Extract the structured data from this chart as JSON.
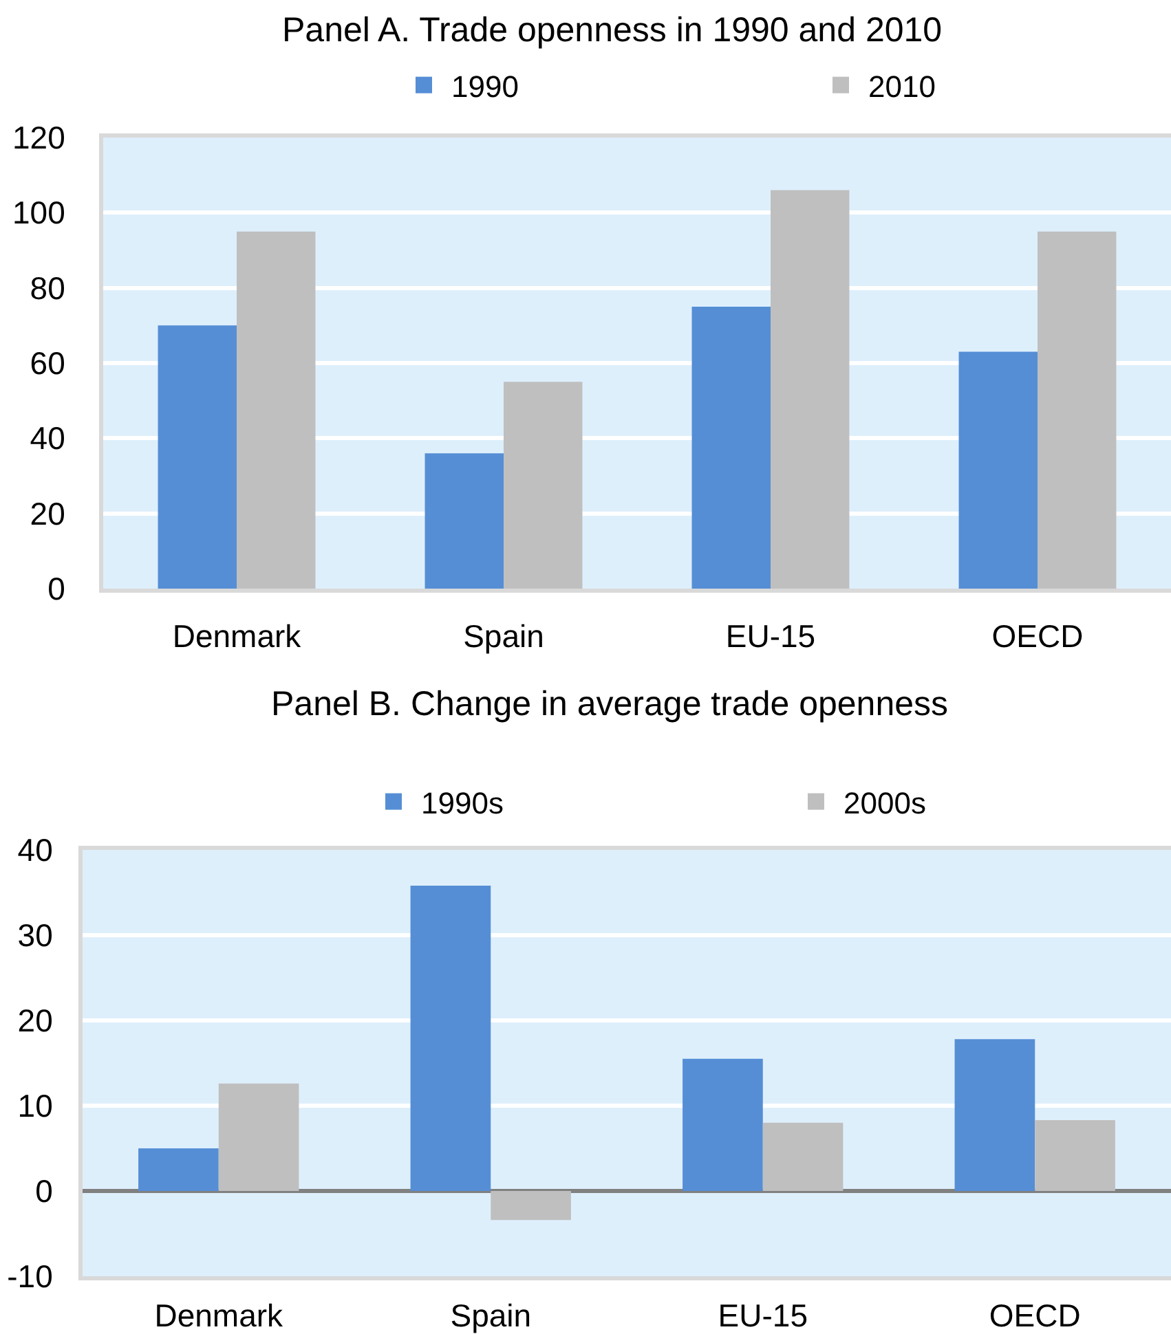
{
  "chart_data": [
    {
      "type": "bar",
      "title": "Panel A. Trade openness in 1990 and 2010",
      "categories": [
        "Denmark",
        "Spain",
        "EU-15",
        "OECD"
      ],
      "series": [
        {
          "name": "1990",
          "color": "#558ed5",
          "values": [
            70,
            36,
            75,
            63
          ]
        },
        {
          "name": "2010",
          "color": "#bfbfbf",
          "values": [
            95,
            55,
            106,
            95
          ]
        }
      ],
      "ylim": [
        0,
        120
      ],
      "yticks": [
        0,
        20,
        40,
        60,
        80,
        100,
        120
      ],
      "grid": "y",
      "legend": "top"
    },
    {
      "type": "bar",
      "title": "Panel B. Change in average trade openness",
      "categories": [
        "Denmark",
        "Spain",
        "EU-15",
        "OECD"
      ],
      "series": [
        {
          "name": "1990s",
          "color": "#558ed5",
          "values": [
            5,
            35.8,
            15.5,
            17.8
          ]
        },
        {
          "name": "2000s",
          "color": "#bfbfbf",
          "values": [
            12.6,
            -3.4,
            8,
            8.3
          ]
        }
      ],
      "ylim": [
        -10,
        40
      ],
      "yticks": [
        -10,
        0,
        10,
        20,
        30,
        40
      ],
      "grid": "y",
      "legend": "top"
    }
  ]
}
